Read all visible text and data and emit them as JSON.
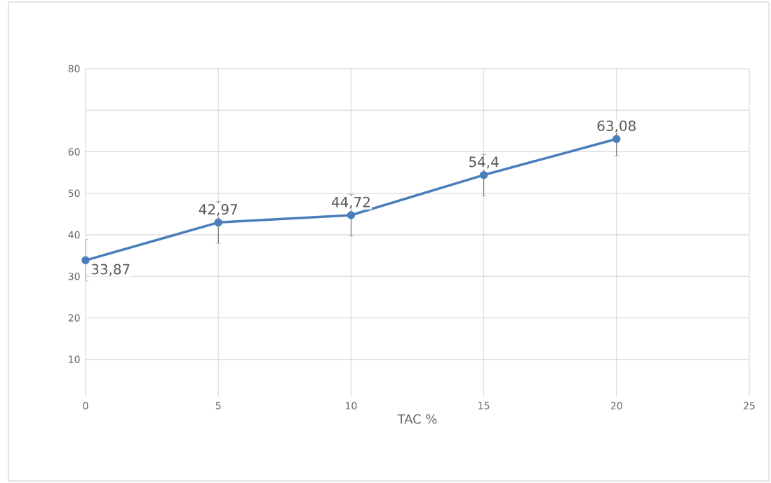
{
  "chart_data": {
    "type": "line",
    "xlabel": "TAC %",
    "x": [
      0,
      5,
      10,
      15,
      20
    ],
    "values": [
      33.87,
      42.97,
      44.72,
      54.4,
      63.08
    ],
    "errors": [
      5,
      5,
      5,
      5,
      4
    ],
    "value_labels": [
      "33,87",
      "42,97",
      "44,72",
      "54,4",
      "63,08"
    ],
    "color": "#4a7ebb",
    "marker": "circle",
    "line_style": "solid",
    "grid": true,
    "xlim": [
      0,
      25
    ],
    "xticks": [
      0,
      5,
      10,
      15,
      20,
      25
    ],
    "ylim": [
      1,
      80
    ],
    "yticks": [
      10,
      20,
      30,
      40,
      50,
      60,
      {
        "value": 70,
        "label": null
      },
      80
    ]
  }
}
